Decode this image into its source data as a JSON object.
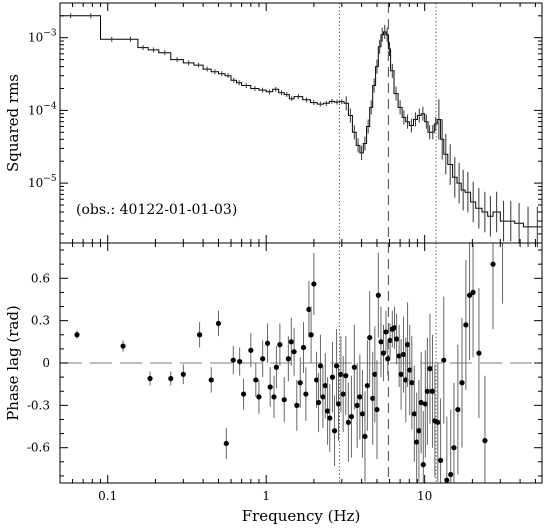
{
  "chart_data": [
    {
      "type": "line",
      "panel": "top",
      "ylabel": "Squared rms",
      "xscale": "log",
      "yscale": "log",
      "xlim": [
        0.05,
        55
      ],
      "ylim": [
        1.5e-06,
        0.003
      ],
      "yticks": [
        {
          "value": 1e-05,
          "label": "10",
          "exp": "−5"
        },
        {
          "value": 0.0001,
          "label": "10",
          "exp": "−4"
        },
        {
          "value": 0.001,
          "label": "10",
          "exp": "−3"
        }
      ],
      "annotation": "(obs.: 40122-01-01-03)",
      "vlines": [
        {
          "x": 2.9,
          "style": "dotted"
        },
        {
          "x": 5.9,
          "style": "dashed"
        },
        {
          "x": 11.8,
          "style": "dotted"
        }
      ],
      "series": [
        {
          "style": "step",
          "x": [
            0.05,
            0.068,
            0.09,
            0.125,
            0.155,
            0.18,
            0.21,
            0.25,
            0.3,
            0.35,
            0.4,
            0.45,
            0.5,
            0.55,
            0.6,
            0.65,
            0.7,
            0.8,
            0.9,
            1.0,
            1.1,
            1.2,
            1.3,
            1.4,
            1.5,
            1.7,
            1.9,
            2.1,
            2.3,
            2.5,
            2.7,
            2.9,
            3.1,
            3.3,
            3.5,
            3.7,
            3.9,
            4.1,
            4.3,
            4.5,
            4.7,
            4.9,
            5.1,
            5.3,
            5.5,
            5.7,
            5.9,
            6.1,
            6.4,
            6.8,
            7.2,
            7.6,
            8.0,
            8.5,
            9.0,
            9.5,
            10.0,
            10.5,
            11.0,
            11.5,
            12.0,
            12.6,
            13.2,
            14.0,
            15.0,
            16.0,
            17.0,
            18.0,
            19.5,
            21.0,
            23.0,
            25.0,
            27.0,
            30.0,
            33.0,
            37.0,
            42.0,
            48.0,
            55.0
          ],
          "y": [
            0.002,
            0.002,
            0.00095,
            0.00095,
            0.00073,
            0.00068,
            0.00062,
            0.0005,
            0.00045,
            0.00042,
            0.00037,
            0.00034,
            0.00032,
            0.0003,
            0.00026,
            0.00024,
            0.00022,
            0.0002,
            0.00019,
            0.00018,
            0.000195,
            0.000175,
            0.000165,
            0.000145,
            0.000155,
            0.00014,
            0.000128,
            0.000122,
            0.000125,
            0.000133,
            0.00013,
            0.000132,
            0.000125,
            8.5e-05,
            5e-05,
            3.3e-05,
            2.6e-05,
            3.5e-05,
            6e-05,
            0.00011,
            0.00022,
            0.0004,
            0.00075,
            0.0011,
            0.0012,
            0.0011,
            0.0007,
            0.00035,
            0.00017,
            0.00011,
            8e-05,
            7e-05,
            6.2e-05,
            7.5e-05,
            8.5e-05,
            9e-05,
            7e-05,
            5e-05,
            5e-05,
            6.5e-05,
            7.5e-05,
            4e-05,
            2.5e-05,
            1.8e-05,
            1.2e-05,
            1e-05,
            8e-06,
            7.5e-06,
            5.5e-06,
            4.5e-06,
            4e-06,
            3.5e-06,
            4e-06,
            3e-06,
            3e-06,
            2.8e-06,
            2.5e-06,
            2.5e-06,
            2.5e-06
          ]
        }
      ]
    },
    {
      "type": "scatter",
      "panel": "bottom",
      "xlabel": "Frequency (Hz)",
      "ylabel": "Phase lag (rad)",
      "xscale": "log",
      "xlim": [
        0.05,
        55
      ],
      "ylim": [
        -0.85,
        0.85
      ],
      "xticks": [
        {
          "value": 0.1,
          "label": "0.1"
        },
        {
          "value": 1,
          "label": "1"
        },
        {
          "value": 10,
          "label": "10"
        }
      ],
      "yticks": [
        {
          "value": 0.6,
          "label": "0.6"
        },
        {
          "value": 0.3,
          "label": "0.3"
        },
        {
          "value": 0,
          "label": "0"
        },
        {
          "value": -0.3,
          "label": "-0.3"
        },
        {
          "value": -0.6,
          "label": "-0.6"
        }
      ],
      "hline": {
        "y": 0,
        "style": "dashed"
      },
      "vlines": [
        {
          "x": 2.9,
          "style": "dotted"
        },
        {
          "x": 5.9,
          "style": "dashed"
        },
        {
          "x": 11.8,
          "style": "dotted"
        }
      ],
      "series": [
        {
          "points": [
            [
              0.064,
              0.2,
              0.03
            ],
            [
              0.125,
              0.12,
              0.04
            ],
            [
              0.185,
              -0.11,
              0.05
            ],
            [
              0.25,
              -0.11,
              0.05
            ],
            [
              0.3,
              -0.08,
              0.07
            ],
            [
              0.38,
              0.2,
              0.09
            ],
            [
              0.45,
              -0.12,
              0.09
            ],
            [
              0.5,
              0.28,
              0.09
            ],
            [
              0.56,
              -0.57,
              0.11
            ],
            [
              0.62,
              0.02,
              0.1
            ],
            [
              0.68,
              0.01,
              0.1
            ],
            [
              0.72,
              -0.22,
              0.11
            ],
            [
              0.8,
              0.09,
              0.12
            ],
            [
              0.86,
              -0.12,
              0.12
            ],
            [
              0.9,
              -0.24,
              0.12
            ],
            [
              0.95,
              0.03,
              0.13
            ],
            [
              1.02,
              0.14,
              0.14
            ],
            [
              1.06,
              -0.17,
              0.14
            ],
            [
              1.12,
              -0.24,
              0.15
            ],
            [
              1.16,
              -0.03,
              0.15
            ],
            [
              1.22,
              0.13,
              0.15
            ],
            [
              1.3,
              -0.26,
              0.16
            ],
            [
              1.38,
              0.03,
              0.16
            ],
            [
              1.44,
              0.15,
              0.17
            ],
            [
              1.5,
              0.08,
              0.17
            ],
            [
              1.56,
              -0.3,
              0.18
            ],
            [
              1.64,
              -0.14,
              0.18
            ],
            [
              1.72,
              0.11,
              0.18
            ],
            [
              1.78,
              -0.22,
              0.19
            ],
            [
              1.86,
              0.38,
              0.2
            ],
            [
              1.92,
              0.2,
              0.2
            ],
            [
              2.0,
              0.56,
              0.22
            ],
            [
              2.08,
              -0.12,
              0.2
            ],
            [
              2.14,
              -0.28,
              0.21
            ],
            [
              2.2,
              -0.02,
              0.22
            ],
            [
              2.28,
              -0.24,
              0.22
            ],
            [
              2.36,
              -0.16,
              0.23
            ],
            [
              2.44,
              -0.34,
              0.24
            ],
            [
              2.52,
              -0.39,
              0.24
            ],
            [
              2.62,
              -0.1,
              0.25
            ],
            [
              2.7,
              -0.48,
              0.25
            ],
            [
              2.78,
              -0.02,
              0.26
            ],
            [
              2.86,
              -0.29,
              0.26
            ],
            [
              2.96,
              -0.08,
              0.27
            ],
            [
              3.06,
              -0.22,
              0.27
            ],
            [
              3.18,
              -0.09,
              0.28
            ],
            [
              3.3,
              -0.42,
              0.28
            ],
            [
              3.45,
              -0.38,
              0.29
            ],
            [
              3.6,
              -0.03,
              0.3
            ],
            [
              3.75,
              -0.3,
              0.3
            ],
            [
              3.9,
              -0.24,
              0.3
            ],
            [
              4.05,
              -0.36,
              0.31
            ],
            [
              4.2,
              -0.52,
              0.32
            ],
            [
              4.35,
              -0.16,
              0.32
            ],
            [
              4.5,
              0.18,
              0.33
            ],
            [
              4.7,
              -0.25,
              0.33
            ],
            [
              4.85,
              -0.08,
              0.34
            ],
            [
              5.0,
              -0.33,
              0.35
            ],
            [
              5.1,
              0.48,
              0.3
            ],
            [
              5.3,
              0.15,
              0.25
            ],
            [
              5.5,
              0.07,
              0.2
            ],
            [
              5.7,
              0.22,
              0.15
            ],
            [
              5.85,
              0.03,
              0.12
            ],
            [
              6.05,
              0.16,
              0.12
            ],
            [
              6.25,
              0.24,
              0.13
            ],
            [
              6.45,
              0.25,
              0.15
            ],
            [
              6.65,
              0.17,
              0.18
            ],
            [
              6.9,
              0.05,
              0.22
            ],
            [
              7.1,
              -0.08,
              0.25
            ],
            [
              7.35,
              0.06,
              0.27
            ],
            [
              7.6,
              -0.12,
              0.3
            ],
            [
              7.8,
              0.13,
              0.3
            ],
            [
              8.05,
              -0.05,
              0.32
            ],
            [
              8.3,
              -0.14,
              0.33
            ],
            [
              8.6,
              -0.36,
              0.34
            ],
            [
              8.9,
              -0.56,
              0.35
            ],
            [
              9.2,
              -0.48,
              0.36
            ],
            [
              9.5,
              -0.28,
              0.36
            ],
            [
              9.8,
              -0.72,
              0.38
            ],
            [
              10.1,
              -0.29,
              0.38
            ],
            [
              10.4,
              -0.2,
              0.38
            ],
            [
              10.8,
              -0.04,
              0.39
            ],
            [
              11.2,
              -0.2,
              0.4
            ],
            [
              11.6,
              -0.41,
              0.4
            ],
            [
              12.1,
              -0.42,
              0.42
            ],
            [
              12.6,
              -0.69,
              0.44
            ],
            [
              13.2,
              0.02,
              0.45
            ],
            [
              13.8,
              -0.83,
              0.45
            ],
            [
              14.6,
              -0.79,
              0.46
            ],
            [
              15.3,
              -0.6,
              0.46
            ],
            [
              16.2,
              -0.33,
              0.46
            ],
            [
              17.2,
              -0.14,
              0.46
            ],
            [
              18.2,
              0.27,
              0.46
            ],
            [
              19.2,
              0.48,
              0.46
            ],
            [
              20.2,
              0.5,
              0.46
            ],
            [
              22.0,
              0.07,
              0.46
            ],
            [
              24.0,
              -0.55,
              0.46
            ],
            [
              27.0,
              0.7,
              0.46
            ],
            [
              31.0,
              0.88,
              0.46
            ]
          ]
        }
      ]
    }
  ]
}
